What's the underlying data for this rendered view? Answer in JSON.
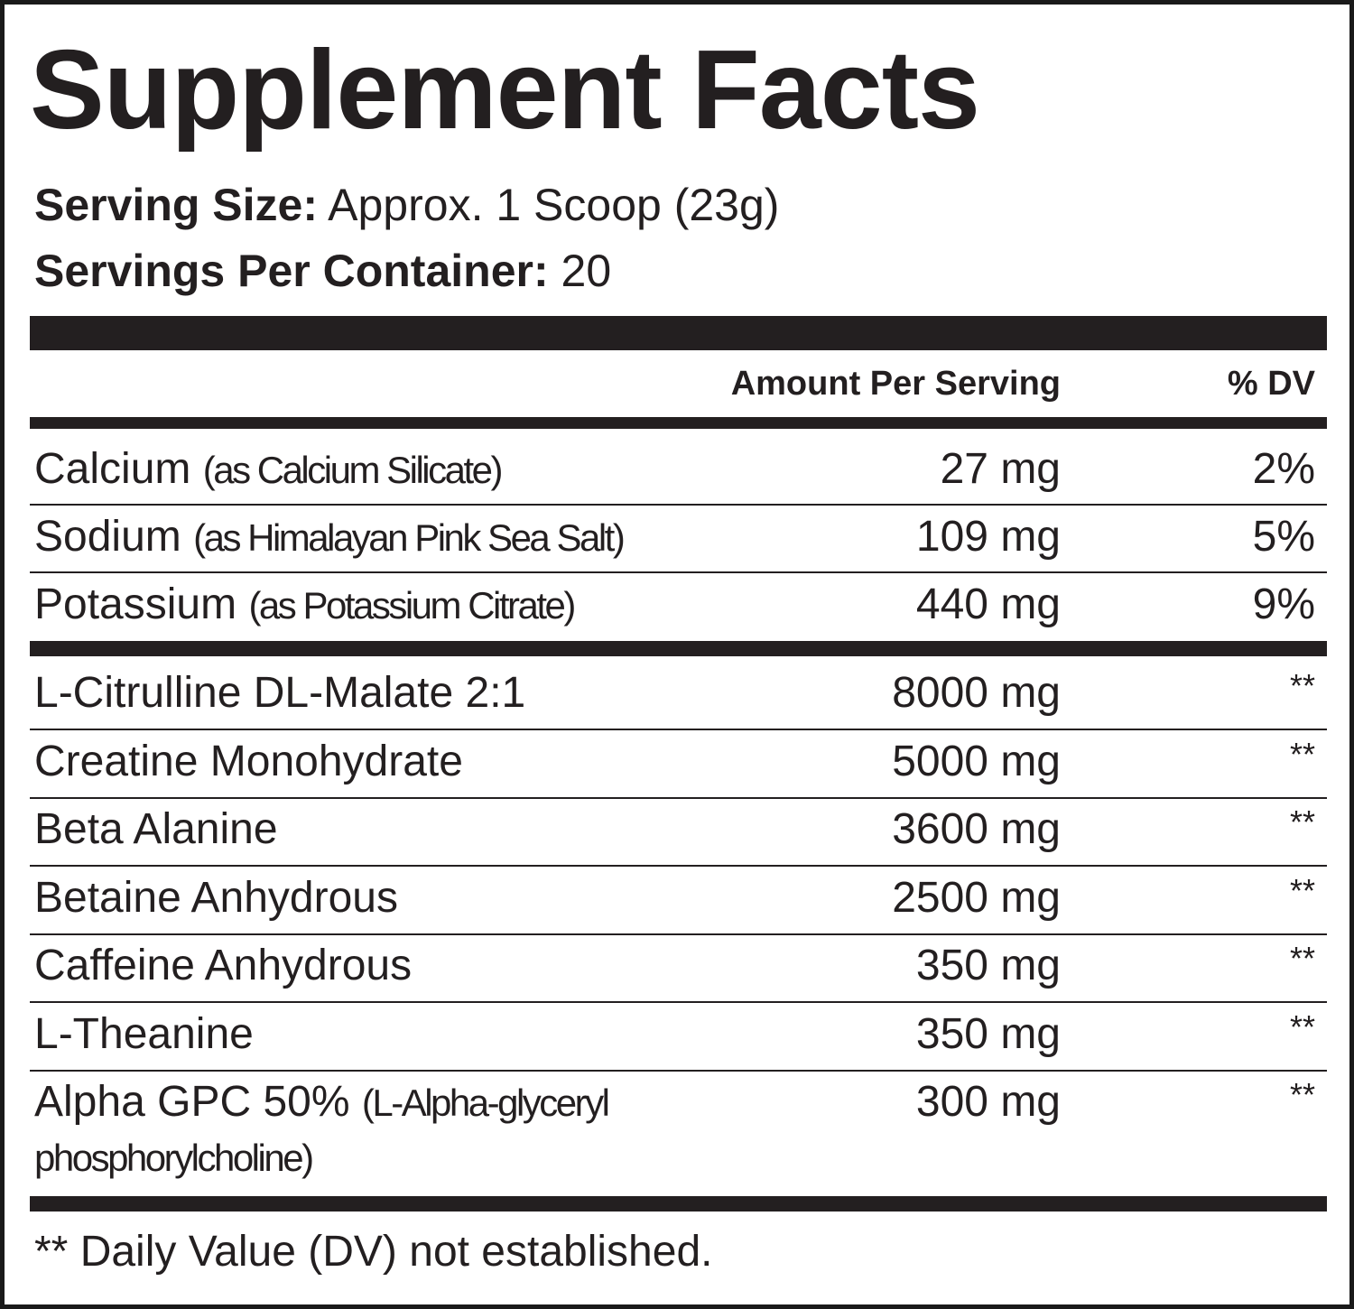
{
  "title": "Supplement Facts",
  "serving_size": {
    "label": "Serving Size:",
    "value": "Approx. 1 Scoop (23g)"
  },
  "servings_per_container": {
    "label": "Servings Per Container:",
    "value": "20"
  },
  "columns": {
    "amount": "Amount Per Serving",
    "dv": "% DV"
  },
  "minerals": [
    {
      "name": "Calcium",
      "detail": "(as Calcium Silicate)",
      "amount": "27 mg",
      "dv": "2%"
    },
    {
      "name": "Sodium",
      "detail": "(as Himalayan Pink Sea Salt)",
      "amount": "109 mg",
      "dv": "5%"
    },
    {
      "name": "Potassium",
      "detail": "(as Potassium Citrate)",
      "amount": "440 mg",
      "dv": "9%"
    }
  ],
  "ingredients": [
    {
      "name": "L-Citrulline DL-Malate 2:1",
      "amount": "8000 mg",
      "dv": "**"
    },
    {
      "name": "Creatine Monohydrate",
      "amount": "5000 mg",
      "dv": "**"
    },
    {
      "name": "Beta Alanine",
      "amount": "3600 mg",
      "dv": "**"
    },
    {
      "name": "Betaine Anhydrous",
      "amount": "2500 mg",
      "dv": "**"
    },
    {
      "name": "Caffeine Anhydrous",
      "amount": "350 mg",
      "dv": "**"
    },
    {
      "name": "L-Theanine",
      "amount": "350 mg",
      "dv": "**"
    },
    {
      "name": "Alpha GPC 50%",
      "detail": "(L-Alpha-glyceryl phosphorylcholine)",
      "amount": "300 mg",
      "dv": "**"
    }
  ],
  "footnote": "** Daily Value (DV) not established."
}
